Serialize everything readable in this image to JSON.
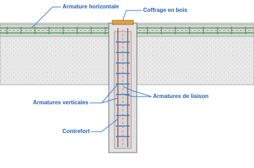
{
  "labels": {
    "horizontal_rebar": "Armature horizontale",
    "formwork": "Coffrage en bois",
    "tie_rebar": "Armatures de liaison",
    "vertical_rebar": "Armatures verticales",
    "buttress": "Contrefort"
  }
}
